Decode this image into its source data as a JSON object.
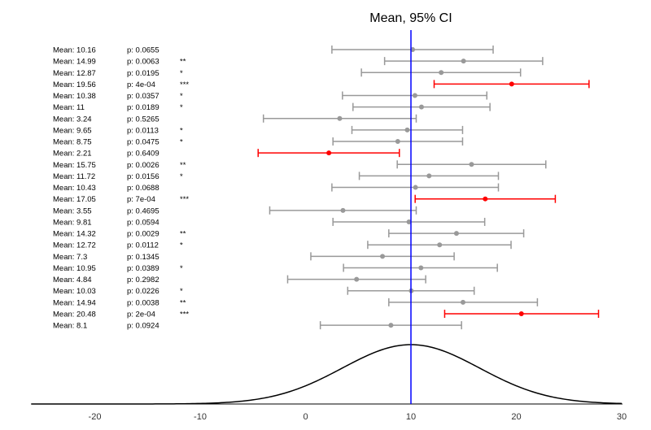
{
  "chart_data": {
    "type": "forest",
    "title": "Mean, 95% CI",
    "reference_line": 10,
    "xlim": [
      -26,
      30
    ],
    "xticks": [
      -20,
      -10,
      0,
      10,
      20,
      30
    ],
    "colors": {
      "normal": "#999999",
      "highlight": "#ff0000",
      "reference": "#0000ff",
      "curve": "#000000"
    },
    "rows": [
      {
        "mean_label": "Mean: 10.16",
        "p_label": "p: 0.0655",
        "stars": "",
        "mean": 10.16,
        "lo": 2.5,
        "hi": 17.8,
        "highlight": false
      },
      {
        "mean_label": "Mean: 14.99",
        "p_label": "p: 0.0063",
        "stars": "**",
        "mean": 14.99,
        "lo": 7.5,
        "hi": 22.5,
        "highlight": false
      },
      {
        "mean_label": "Mean: 12.87",
        "p_label": "p: 0.0195",
        "stars": "*",
        "mean": 12.87,
        "lo": 5.3,
        "hi": 20.4,
        "highlight": false
      },
      {
        "mean_label": "Mean: 19.56",
        "p_label": "p: 4e-04",
        "stars": "***",
        "mean": 19.56,
        "lo": 12.2,
        "hi": 26.9,
        "highlight": true
      },
      {
        "mean_label": "Mean: 10.38",
        "p_label": "p: 0.0357",
        "stars": "*",
        "mean": 10.38,
        "lo": 3.5,
        "hi": 17.2,
        "highlight": false
      },
      {
        "mean_label": "Mean: 11",
        "p_label": "p: 0.0189",
        "stars": "*",
        "mean": 11.0,
        "lo": 4.5,
        "hi": 17.5,
        "highlight": false
      },
      {
        "mean_label": "Mean: 3.24",
        "p_label": "p: 0.5265",
        "stars": "",
        "mean": 3.24,
        "lo": -4.0,
        "hi": 10.5,
        "highlight": false
      },
      {
        "mean_label": "Mean: 9.65",
        "p_label": "p: 0.0113",
        "stars": "*",
        "mean": 9.65,
        "lo": 4.4,
        "hi": 14.9,
        "highlight": false
      },
      {
        "mean_label": "Mean: 8.75",
        "p_label": "p: 0.0475",
        "stars": "*",
        "mean": 8.75,
        "lo": 2.6,
        "hi": 14.9,
        "highlight": false
      },
      {
        "mean_label": "Mean: 2.21",
        "p_label": "p: 0.6409",
        "stars": "",
        "mean": 2.21,
        "lo": -4.5,
        "hi": 8.9,
        "highlight": true
      },
      {
        "mean_label": "Mean: 15.75",
        "p_label": "p: 0.0026",
        "stars": "**",
        "mean": 15.75,
        "lo": 8.7,
        "hi": 22.8,
        "highlight": false
      },
      {
        "mean_label": "Mean: 11.72",
        "p_label": "p: 0.0156",
        "stars": "*",
        "mean": 11.72,
        "lo": 5.1,
        "hi": 18.3,
        "highlight": false
      },
      {
        "mean_label": "Mean: 10.43",
        "p_label": "p: 0.0688",
        "stars": "",
        "mean": 10.43,
        "lo": 2.5,
        "hi": 18.3,
        "highlight": false
      },
      {
        "mean_label": "Mean: 17.05",
        "p_label": "p: 7e-04",
        "stars": "***",
        "mean": 17.05,
        "lo": 10.4,
        "hi": 23.7,
        "highlight": true
      },
      {
        "mean_label": "Mean: 3.55",
        "p_label": "p: 0.4695",
        "stars": "",
        "mean": 3.55,
        "lo": -3.4,
        "hi": 10.5,
        "highlight": false
      },
      {
        "mean_label": "Mean: 9.81",
        "p_label": "p: 0.0594",
        "stars": "",
        "mean": 9.81,
        "lo": 2.6,
        "hi": 17.0,
        "highlight": false
      },
      {
        "mean_label": "Mean: 14.32",
        "p_label": "p: 0.0029",
        "stars": "**",
        "mean": 14.32,
        "lo": 7.9,
        "hi": 20.7,
        "highlight": false
      },
      {
        "mean_label": "Mean: 12.72",
        "p_label": "p: 0.0112",
        "stars": "*",
        "mean": 12.72,
        "lo": 5.9,
        "hi": 19.5,
        "highlight": false
      },
      {
        "mean_label": "Mean: 7.3",
        "p_label": "p: 0.1345",
        "stars": "",
        "mean": 7.3,
        "lo": 0.5,
        "hi": 14.1,
        "highlight": false
      },
      {
        "mean_label": "Mean: 10.95",
        "p_label": "p: 0.0389",
        "stars": "*",
        "mean": 10.95,
        "lo": 3.6,
        "hi": 18.2,
        "highlight": false
      },
      {
        "mean_label": "Mean: 4.84",
        "p_label": "p: 0.2982",
        "stars": "",
        "mean": 4.84,
        "lo": -1.7,
        "hi": 11.4,
        "highlight": false
      },
      {
        "mean_label": "Mean: 10.03",
        "p_label": "p: 0.0226",
        "stars": "*",
        "mean": 10.03,
        "lo": 4.0,
        "hi": 16.0,
        "highlight": false
      },
      {
        "mean_label": "Mean: 14.94",
        "p_label": "p: 0.0038",
        "stars": "**",
        "mean": 14.94,
        "lo": 7.9,
        "hi": 22.0,
        "highlight": false
      },
      {
        "mean_label": "Mean: 20.48",
        "p_label": "p: 2e-04",
        "stars": "***",
        "mean": 20.48,
        "lo": 13.2,
        "hi": 27.8,
        "highlight": true
      },
      {
        "mean_label": "Mean: 8.1",
        "p_label": "p: 0.0924",
        "stars": "",
        "mean": 8.1,
        "lo": 1.4,
        "hi": 14.8,
        "highlight": false
      }
    ],
    "density": {
      "center": 10,
      "sd": 6.5
    }
  }
}
